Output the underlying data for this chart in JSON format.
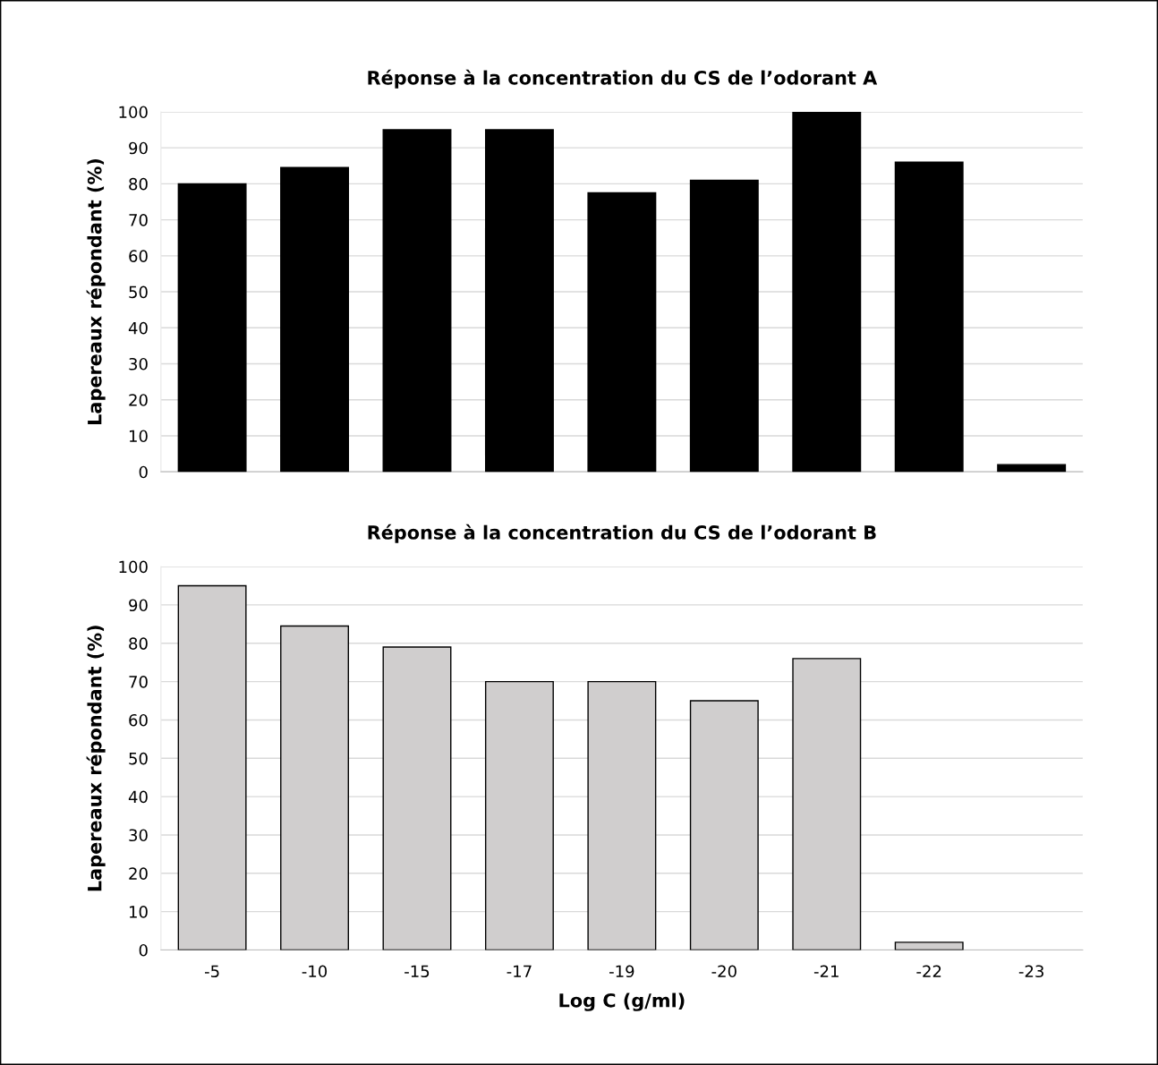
{
  "chart_data": [
    {
      "type": "bar",
      "title": "Réponse à la concentration du CS de l’odorant A",
      "ylabel": "Lapereaux répondant (%)",
      "categories": [
        "-5",
        "-10",
        "-15",
        "-17",
        "-19",
        "-20",
        "-21",
        "-22",
        "-23"
      ],
      "series": [
        {
          "color": "#000000",
          "values": [
            80,
            84.5,
            95,
            95,
            77.5,
            81,
            100,
            86,
            2
          ]
        }
      ],
      "ylim": [
        0,
        100
      ],
      "yticks": [
        0,
        10,
        20,
        30,
        40,
        50,
        60,
        70,
        80,
        90,
        100
      ],
      "grid": "y",
      "tick_labels": "y"
    },
    {
      "type": "bar",
      "title": "Réponse à la concentration du CS de l’odorant B",
      "ylabel": "Lapereaux répondant (%)",
      "xlabel": "Log C (g/ml)",
      "categories": [
        "-5",
        "-10",
        "-15",
        "-17",
        "-19",
        "-20",
        "-21",
        "-22",
        "-23"
      ],
      "series": [
        {
          "color": "#d0cece",
          "values": [
            95,
            84.5,
            79,
            70,
            70,
            65,
            76,
            2,
            null
          ]
        }
      ],
      "ylim": [
        0,
        100
      ],
      "yticks": [
        0,
        10,
        20,
        30,
        40,
        50,
        60,
        70,
        80,
        90,
        100
      ],
      "grid": "y"
    }
  ]
}
